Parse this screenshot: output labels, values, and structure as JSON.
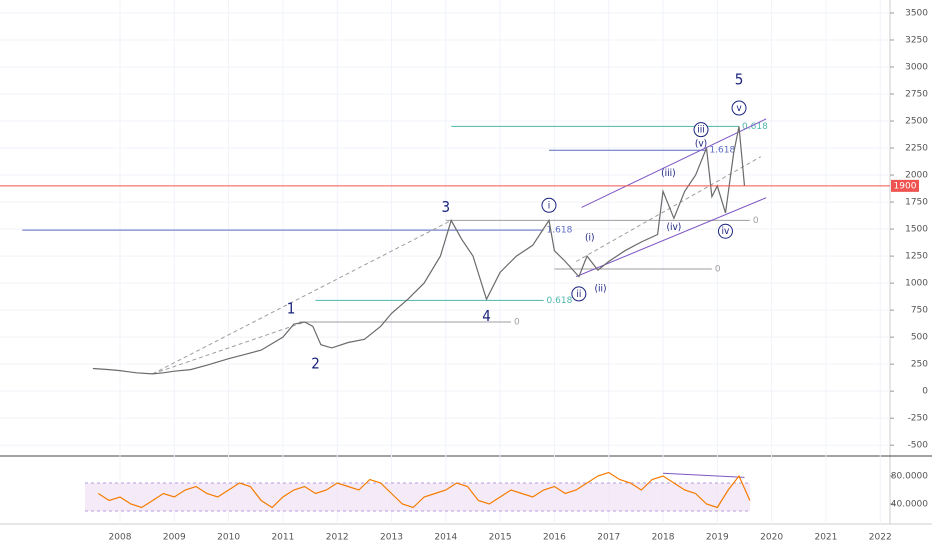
{
  "chart_data": [
    {
      "type": "line",
      "color": "#6b6b6b",
      "x": [
        2007.5,
        2007.8,
        2008.0,
        2008.3,
        2008.6,
        2008.8,
        2009.0,
        2009.3,
        2009.6,
        2010.0,
        2010.3,
        2010.6,
        2011.0,
        2011.2,
        2011.4,
        2011.55,
        2011.7,
        2011.9,
        2012.2,
        2012.5,
        2012.8,
        2013.0,
        2013.3,
        2013.6,
        2013.9,
        2014.1,
        2014.3,
        2014.5,
        2014.75,
        2015.0,
        2015.3,
        2015.6,
        2015.9,
        2016.0,
        2016.2,
        2016.45,
        2016.6,
        2016.8,
        2017.0,
        2017.3,
        2017.6,
        2017.9,
        2018.0,
        2018.2,
        2018.4,
        2018.6,
        2018.8,
        2018.9,
        2019.0,
        2019.15,
        2019.3,
        2019.4,
        2019.5
      ],
      "values": [
        210,
        200,
        190,
        170,
        160,
        170,
        185,
        200,
        240,
        300,
        340,
        380,
        500,
        620,
        640,
        600,
        430,
        400,
        450,
        480,
        600,
        720,
        850,
        1000,
        1250,
        1580,
        1400,
        1250,
        850,
        1100,
        1250,
        1350,
        1580,
        1300,
        1200,
        1060,
        1250,
        1120,
        1200,
        1300,
        1380,
        1450,
        1850,
        1600,
        1850,
        2000,
        2250,
        1800,
        1900,
        1650,
        2200,
        2450,
        1900
      ],
      "xlim": [
        2005.79,
        2022.18
      ],
      "xticks": [
        2008,
        2009,
        2010,
        2011,
        2012,
        2013,
        2014,
        2015,
        2016,
        2017,
        2018,
        2019,
        2020,
        2021,
        2022
      ],
      "ylim": [
        -600,
        3620
      ],
      "yticks": [
        -500,
        -250,
        0,
        250,
        500,
        750,
        1000,
        1250,
        1500,
        1750,
        2000,
        2250,
        2500,
        2750,
        3000,
        3250,
        3500
      ],
      "last_price": 1900,
      "last_price_color": "#ef5350",
      "grid": true,
      "levels": [
        {
          "label": "1.618",
          "value": 1490,
          "from": 2006.2,
          "to": 2015.8,
          "color": "#5c6bc0"
        },
        {
          "label": "0.618",
          "value": 840,
          "from": 2011.6,
          "to": 2015.8,
          "color": "#4db6ac"
        },
        {
          "label": "0",
          "value": 640,
          "from": 2011.3,
          "to": 2015.2,
          "color": "#9e9e9e"
        },
        {
          "label": "1.618",
          "value": 2230,
          "from": 2015.9,
          "to": 2018.8,
          "color": "#5c6bc0"
        },
        {
          "label": "0.618",
          "value": 2450,
          "from": 2014.1,
          "to": 2019.4,
          "color": "#4db6ac"
        },
        {
          "label": "0",
          "value": 1580,
          "from": 2014.0,
          "to": 2019.6,
          "color": "#9e9e9e"
        },
        {
          "label": "0",
          "value": 1130,
          "from": 2016.0,
          "to": 2018.9,
          "color": "#9e9e9e"
        }
      ],
      "trendlines": [
        [
          2016.4,
          1060,
          2019.9,
          1790,
          "#7e57c2"
        ],
        [
          2016.5,
          1700,
          2019.9,
          2520,
          "#7e57c2"
        ],
        [
          2016.4,
          1200,
          2019.8,
          2170,
          "#9e9e9e"
        ],
        [
          2008.6,
          160,
          2014.1,
          1580,
          "#9e9e9e"
        ],
        [
          2008.6,
          160,
          2011.4,
          640,
          "#9e9e9e"
        ]
      ],
      "annotations": [
        {
          "text": "1",
          "x": 2011.15,
          "y": 760
        },
        {
          "text": "2",
          "x": 2011.6,
          "y": 250
        },
        {
          "text": "3",
          "x": 2014.0,
          "y": 1700
        },
        {
          "text": "4",
          "x": 2014.75,
          "y": 690
        },
        {
          "text": "5",
          "x": 2019.4,
          "y": 2880
        },
        {
          "text": "i",
          "x": 2015.9,
          "y": 1720
        },
        {
          "text": "ii",
          "x": 2016.45,
          "y": 900
        },
        {
          "text": "iii",
          "x": 2018.7,
          "y": 2420
        },
        {
          "text": "iv",
          "x": 2019.15,
          "y": 1480
        },
        {
          "text": "v",
          "x": 2019.4,
          "y": 2620
        },
        {
          "text": "(i)",
          "x": 2016.65,
          "y": 1420
        },
        {
          "text": "(ii)",
          "x": 2016.85,
          "y": 950
        },
        {
          "text": "(iii)",
          "x": 2018.1,
          "y": 2020
        },
        {
          "text": "(iv)",
          "x": 2018.2,
          "y": 1520
        },
        {
          "text": "(v)",
          "x": 2018.7,
          "y": 2290
        }
      ]
    },
    {
      "type": "line",
      "color": "#f57c00",
      "x": [
        2007.6,
        2007.8,
        2008.0,
        2008.2,
        2008.4,
        2008.6,
        2008.8,
        2009.0,
        2009.2,
        2009.4,
        2009.6,
        2009.8,
        2010.0,
        2010.2,
        2010.4,
        2010.6,
        2010.8,
        2011.0,
        2011.2,
        2011.4,
        2011.6,
        2011.8,
        2012.0,
        2012.2,
        2012.4,
        2012.6,
        2012.8,
        2013.0,
        2013.2,
        2013.4,
        2013.6,
        2013.8,
        2014.0,
        2014.2,
        2014.4,
        2014.6,
        2014.8,
        2015.0,
        2015.2,
        2015.4,
        2015.6,
        2015.8,
        2016.0,
        2016.2,
        2016.4,
        2016.6,
        2016.8,
        2017.0,
        2017.2,
        2017.4,
        2017.6,
        2017.8,
        2018.0,
        2018.2,
        2018.4,
        2018.6,
        2018.8,
        2019.0,
        2019.2,
        2019.4,
        2019.6
      ],
      "values": [
        55,
        45,
        50,
        40,
        35,
        45,
        55,
        50,
        60,
        65,
        55,
        50,
        60,
        70,
        65,
        45,
        35,
        50,
        60,
        65,
        55,
        60,
        70,
        65,
        60,
        75,
        70,
        55,
        40,
        35,
        50,
        55,
        60,
        70,
        65,
        45,
        40,
        50,
        60,
        55,
        50,
        60,
        65,
        55,
        60,
        70,
        80,
        85,
        75,
        70,
        60,
        75,
        80,
        70,
        60,
        55,
        40,
        35,
        60,
        80,
        45
      ],
      "ylim": [
        14.3,
        105.7
      ],
      "yticks": [
        {
          "value": 40,
          "label": "40.0000"
        },
        {
          "value": 80,
          "label": "80.0000"
        }
      ],
      "band": [
        30,
        70
      ],
      "trendlines": [
        [
          2018.0,
          84,
          2019.5,
          78,
          "#7e57c2"
        ]
      ]
    }
  ]
}
